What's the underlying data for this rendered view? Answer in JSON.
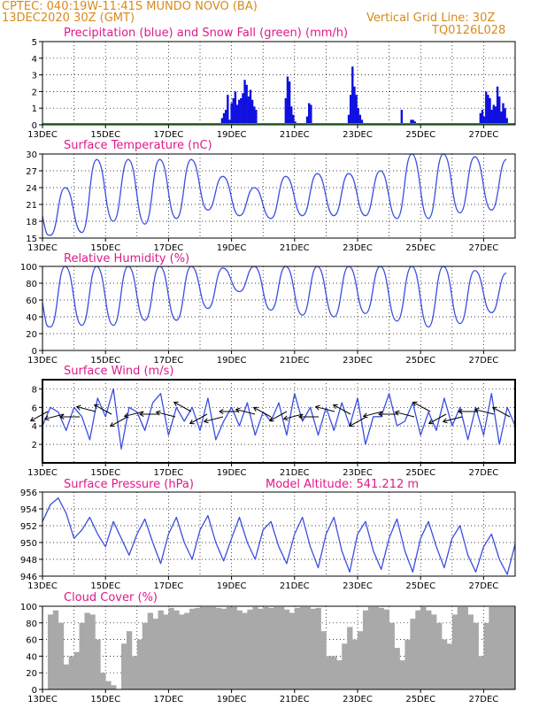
{
  "header": {
    "station": "CPTEC:   040:19W-11:41S   MUNDO NOVO (BA)",
    "run": "13DEC2020  30Z (GMT)",
    "grid_note": "Vertical Grid Line: 30Z",
    "model_id": "TQ0126L028"
  },
  "colors": {
    "header": "#d98a1b",
    "title": "#e0198a",
    "line": "#3a4fe0",
    "snow": "#1fa01f",
    "cloud": "#a9a9a9"
  },
  "chart_data": [
    {
      "type": "bar",
      "title": "Precipitation (blue) and Snow Fall (green) (mm/h)",
      "ylim": [
        0,
        5
      ],
      "yticks": [
        "0",
        "1",
        "2",
        "3",
        "4",
        "5"
      ],
      "xticks": [
        "13DEC",
        "15DEC",
        "17DEC",
        "19DEC",
        "21DEC",
        "23DEC",
        "25DEC",
        "27DEC"
      ],
      "xrange_days": [
        0,
        15
      ],
      "series": [
        {
          "name": "Precipitation",
          "color": "#1010e0",
          "x": [
            5.7,
            5.76,
            5.82,
            5.88,
            5.94,
            6.0,
            6.06,
            6.12,
            6.18,
            6.24,
            6.3,
            6.36,
            6.42,
            6.48,
            6.54,
            6.6,
            6.66,
            6.72,
            6.78,
            7.72,
            7.78,
            7.84,
            7.9,
            7.96,
            8.02,
            8.4,
            8.46,
            8.52,
            9.72,
            9.78,
            9.84,
            9.9,
            9.96,
            10.02,
            10.08,
            10.14,
            10.2,
            11.4,
            11.7,
            11.76,
            11.82,
            13.9,
            13.96,
            14.02,
            14.08,
            14.14,
            14.2,
            14.26,
            14.32,
            14.38,
            14.44,
            14.5,
            14.56,
            14.62,
            14.68,
            14.74
          ],
          "values": [
            0.4,
            0.7,
            0.9,
            1.8,
            0.3,
            1.3,
            1.6,
            2.0,
            1.2,
            1.5,
            1.6,
            1.9,
            2.7,
            2.4,
            1.7,
            2.1,
            1.5,
            1.1,
            0.9,
            1.6,
            2.9,
            2.6,
            1.1,
            0.6,
            0.2,
            0.5,
            1.3,
            1.2,
            0.6,
            1.8,
            3.5,
            2.3,
            1.8,
            1.0,
            0.6,
            0.3,
            0.1,
            0.9,
            0.3,
            0.3,
            0.2,
            0.7,
            0.9,
            0.5,
            2.0,
            1.8,
            1.6,
            0.9,
            1.2,
            1.1,
            2.3,
            1.7,
            0.8,
            1.3,
            1.0,
            0.4
          ]
        },
        {
          "name": "Snow Fall",
          "color": "#1fa01f",
          "x": [
            0,
            15
          ],
          "values": [
            0,
            0
          ]
        }
      ]
    },
    {
      "type": "line",
      "title": "Surface Temperature (nC)",
      "ylim": [
        15,
        30
      ],
      "yticks": [
        "15",
        "18",
        "21",
        "24",
        "27",
        "30"
      ],
      "xticks": [
        "13DEC",
        "15DEC",
        "17DEC",
        "19DEC",
        "21DEC",
        "23DEC",
        "25DEC",
        "27DEC"
      ],
      "xrange_days": [
        0,
        15
      ],
      "series": [
        {
          "name": "Temperature",
          "color": "#3a4fe0",
          "daily_min": [
            15.5,
            16.0,
            18.0,
            17.5,
            18.5,
            20.0,
            19.0,
            18.5,
            19.0,
            19.0,
            19.0,
            18.5,
            18.5,
            19.5,
            20.0
          ],
          "daily_max": [
            24.0,
            29.0,
            29.0,
            29.0,
            29.0,
            26.0,
            24.0,
            26.0,
            26.5,
            26.5,
            27.0,
            30.0,
            30.0,
            29.5,
            29.0
          ]
        }
      ]
    },
    {
      "type": "line",
      "title": "Relative Humidity (%)",
      "ylim": [
        0,
        100
      ],
      "yticks": [
        "0",
        "20",
        "40",
        "60",
        "80",
        "100"
      ],
      "xticks": [
        "13DEC",
        "15DEC",
        "17DEC",
        "19DEC",
        "21DEC",
        "23DEC",
        "25DEC",
        "27DEC"
      ],
      "xrange_days": [
        0,
        15
      ],
      "series": [
        {
          "name": "Relative Humidity",
          "color": "#3a4fe0",
          "daily_min": [
            28,
            30,
            30,
            36,
            36,
            50,
            70,
            48,
            42,
            40,
            44,
            35,
            28,
            32,
            45
          ],
          "daily_max": [
            100,
            100,
            100,
            100,
            100,
            98,
            100,
            100,
            100,
            100,
            100,
            100,
            100,
            95,
            92
          ]
        }
      ]
    },
    {
      "type": "line",
      "title": "Surface Wind (m/s)",
      "ylim": [
        0,
        9
      ],
      "yticks": [
        "2",
        "4",
        "6",
        "8"
      ],
      "xticks": [
        "13DEC",
        "15DEC",
        "17DEC",
        "19DEC",
        "21DEC",
        "23DEC",
        "25DEC",
        "27DEC"
      ],
      "xrange_days": [
        0,
        15
      ],
      "series": [
        {
          "name": "Wind Speed",
          "color": "#3a4fe0",
          "values": [
            4.0,
            6.0,
            5.5,
            3.5,
            6.0,
            5.0,
            2.5,
            7.0,
            5.0,
            8.0,
            1.5,
            6.0,
            5.5,
            3.5,
            6.5,
            7.5,
            3.0,
            6.0,
            4.5,
            6.0,
            3.5,
            7.0,
            2.5,
            4.5,
            6.0,
            4.0,
            6.5,
            3.0,
            5.5,
            4.5,
            6.5,
            3.0,
            7.5,
            4.5,
            6.0,
            3.0,
            6.0,
            3.5,
            6.5,
            4.0,
            7.0,
            2.0,
            5.0,
            5.0,
            7.5,
            4.0,
            4.5,
            6.5,
            3.0,
            5.5,
            3.5,
            7.0,
            4.0,
            6.0,
            2.5,
            6.0,
            3.0,
            7.5,
            2.0,
            6.0,
            4.0
          ]
        }
      ]
    },
    {
      "type": "line",
      "title": "Surface Pressure (hPa)",
      "annotation": "Model Altitude: 541.212  m",
      "ylim": [
        946,
        956
      ],
      "yticks": [
        "946",
        "948",
        "950",
        "952",
        "954",
        "956"
      ],
      "xticks": [
        "13DEC",
        "15DEC",
        "17DEC",
        "19DEC",
        "21DEC",
        "23DEC",
        "25DEC",
        "27DEC"
      ],
      "xrange_days": [
        0,
        15
      ],
      "series": [
        {
          "name": "Pressure",
          "color": "#3a4fe0",
          "values": [
            952.5,
            954.5,
            955.3,
            953.5,
            950.5,
            951.5,
            953.0,
            951.0,
            949.5,
            952.5,
            950.5,
            948.5,
            951.0,
            952.8,
            950.0,
            947.5,
            951.0,
            953.0,
            950.0,
            948.0,
            951.5,
            953.2,
            950.0,
            947.8,
            950.5,
            953.0,
            950.0,
            948.0,
            951.5,
            952.5,
            949.5,
            947.5,
            951.0,
            953.0,
            949.5,
            947.0,
            951.0,
            953.0,
            949.0,
            946.5,
            951.0,
            952.5,
            949.0,
            946.8,
            950.5,
            952.8,
            949.0,
            946.5,
            950.5,
            952.5,
            949.5,
            947.0,
            950.5,
            952.0,
            948.5,
            946.5,
            949.5,
            951.0,
            948.0,
            946.2,
            949.8
          ]
        }
      ]
    },
    {
      "type": "area",
      "title": "Cloud Cover (%)",
      "ylim": [
        0,
        100
      ],
      "yticks": [
        "0",
        "20",
        "40",
        "60",
        "80",
        "100"
      ],
      "xticks": [
        "13DEC",
        "15DEC",
        "17DEC",
        "19DEC",
        "21DEC",
        "23DEC",
        "25DEC",
        "27DEC"
      ],
      "xrange_days": [
        0,
        15
      ],
      "series": [
        {
          "name": "Cloud Cover",
          "color": "#a9a9a9",
          "values": [
            0,
            90,
            95,
            80,
            30,
            40,
            45,
            80,
            92,
            90,
            60,
            20,
            10,
            5,
            0,
            55,
            70,
            40,
            60,
            80,
            92,
            85,
            95,
            90,
            98,
            95,
            90,
            92,
            97,
            98,
            99,
            99,
            99,
            98,
            97,
            99,
            99,
            95,
            92,
            96,
            99,
            97,
            99,
            98,
            99,
            99,
            96,
            92,
            98,
            99,
            99,
            97,
            98,
            70,
            40,
            40,
            35,
            55,
            75,
            60,
            70,
            95,
            99,
            99,
            98,
            96,
            80,
            50,
            35,
            60,
            85,
            95,
            99,
            95,
            90,
            80,
            60,
            55,
            90,
            99,
            99,
            90,
            80,
            40,
            80,
            99,
            99,
            99,
            99,
            99
          ]
        }
      ]
    }
  ]
}
